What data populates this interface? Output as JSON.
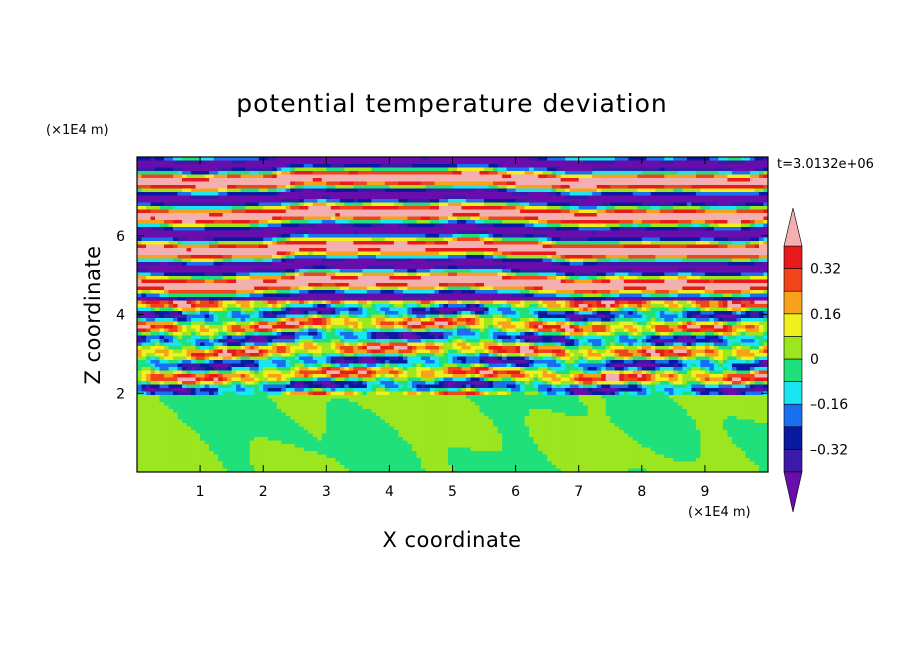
{
  "chart_data": {
    "type": "heatmap",
    "title": "potential temperature deviation",
    "xlabel": "X coordinate",
    "ylabel": "Z coordinate",
    "x_unit_label": "(×1E4 m)",
    "y_unit_label": "(×1E4 m)",
    "time_label": "t=3.0132e+06",
    "x_range": [
      0,
      10
    ],
    "y_range": [
      0,
      8
    ],
    "x_ticks": [
      1,
      2,
      3,
      4,
      5,
      6,
      7,
      8,
      9
    ],
    "y_ticks": [
      2,
      4,
      6
    ],
    "x_tick_labels": [
      "1",
      "2",
      "3",
      "4",
      "5",
      "6",
      "7",
      "8",
      "9"
    ],
    "y_tick_labels": [
      "2",
      "4",
      "6"
    ],
    "colorbar": {
      "levels": [
        -0.4,
        -0.32,
        -0.24,
        -0.16,
        -0.08,
        0,
        0.08,
        0.16,
        0.24,
        0.32,
        0.4
      ],
      "tick_values": [
        0.32,
        0.16,
        0,
        -0.16,
        -0.32
      ],
      "tick_labels": [
        "0.32",
        "0.16",
        "0",
        "–0.16",
        "–0.32"
      ],
      "colors": [
        "#6a0dad",
        "#3c1aa8",
        "#0a1aa0",
        "#1a6ef0",
        "#19e6f0",
        "#1fe07a",
        "#9be61f",
        "#f0f01e",
        "#f7a21a",
        "#f0441b",
        "#e81a1a",
        "#f4b0b0"
      ],
      "extend": "both"
    },
    "layers": [
      {
        "z_min": 0,
        "z_max": 2.0,
        "description_values": [
          -0.04,
          0.04
        ],
        "pattern": "smooth green/light-green blobs"
      },
      {
        "z_min": 2.0,
        "z_max": 4.4,
        "description_values": [
          -0.4,
          0.4
        ],
        "pattern": "turbulent multi-color bands"
      },
      {
        "z_min": 4.4,
        "z_max": 8.0,
        "description_values": [
          -0.44,
          0.44
        ],
        "pattern": "alternating pink / purple stripes"
      }
    ]
  }
}
